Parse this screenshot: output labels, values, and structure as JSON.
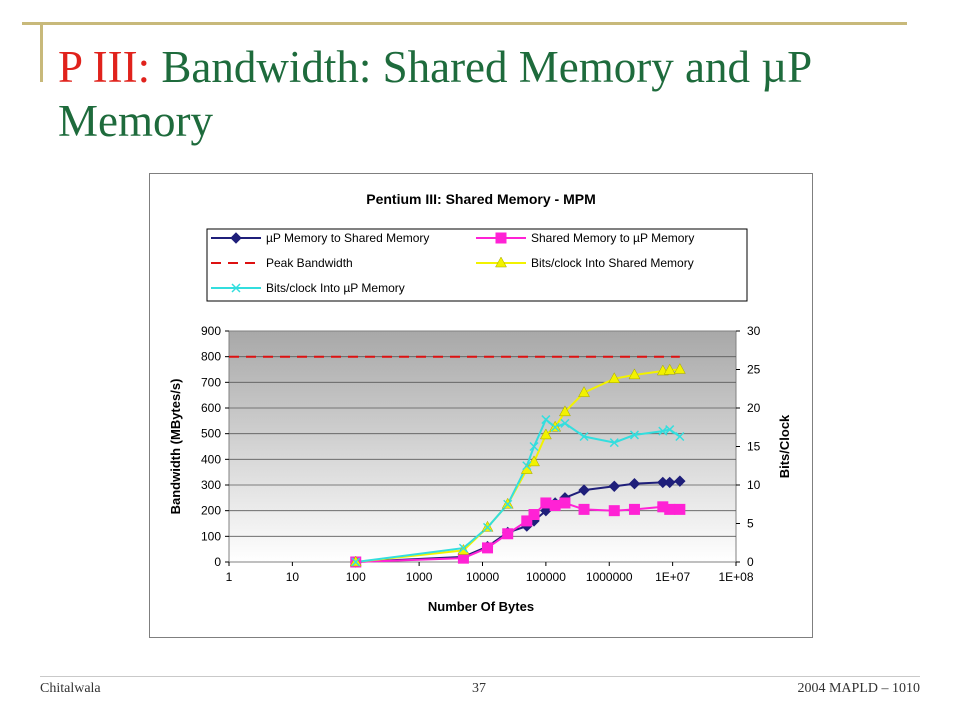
{
  "slide": {
    "title_prefix": "P III:",
    "title_rest": " Bandwidth: Shared Memory and µP Memory"
  },
  "footer": {
    "author": "Chitalwala",
    "page_number": "37",
    "event": "2004 MAPLD – 1010"
  },
  "chart_data": {
    "type": "line",
    "title": "Pentium III: Shared Memory - MPM",
    "xlabel": "Number Of Bytes",
    "ylabel": "Bandwidth (MBytes/s)",
    "y2label": "Bits/Clock",
    "x_scale": "log",
    "xlim": [
      1,
      100000000
    ],
    "ylim": [
      0,
      900
    ],
    "y2lim": [
      0,
      30
    ],
    "x_tick_labels": [
      "1",
      "10",
      "100",
      "1000",
      "10000",
      "100000",
      "1000000",
      "1E+07",
      "1E+08"
    ],
    "y_ticks": [
      "0",
      "100",
      "200",
      "300",
      "400",
      "500",
      "600",
      "700",
      "800",
      "900"
    ],
    "y2_ticks": [
      "0",
      "5",
      "10",
      "15",
      "20",
      "25",
      "30"
    ],
    "grid": "horizontal",
    "legend_position": "top",
    "series": [
      {
        "name": "µP Memory to Shared Memory",
        "axis": "left",
        "color": "#1f1f7a",
        "marker": "diamond",
        "dash": "none",
        "points": [
          [
            100,
            0
          ],
          [
            5000,
            20
          ],
          [
            12000,
            60
          ],
          [
            25000,
            115
          ],
          [
            50000,
            140
          ],
          [
            65000,
            160
          ],
          [
            100000,
            200
          ],
          [
            140000,
            230
          ],
          [
            200000,
            250
          ],
          [
            400000,
            280
          ],
          [
            1200000,
            295
          ],
          [
            2500000,
            305
          ],
          [
            7000000,
            310
          ],
          [
            9000000,
            310
          ],
          [
            13000000,
            315
          ]
        ]
      },
      {
        "name": "Shared Memory to µP Memory",
        "axis": "left",
        "color": "#ff22d5",
        "marker": "square",
        "dash": "none",
        "points": [
          [
            100,
            0
          ],
          [
            5000,
            15
          ],
          [
            12000,
            55
          ],
          [
            25000,
            110
          ],
          [
            50000,
            160
          ],
          [
            65000,
            185
          ],
          [
            100000,
            230
          ],
          [
            140000,
            220
          ],
          [
            200000,
            230
          ],
          [
            400000,
            205
          ],
          [
            1200000,
            200
          ],
          [
            2500000,
            205
          ],
          [
            7000000,
            215
          ],
          [
            9000000,
            205
          ],
          [
            13000000,
            205
          ]
        ]
      },
      {
        "name": "Peak Bandwidth",
        "axis": "left",
        "color": "#dd1111",
        "marker": "none",
        "dash": "dash",
        "points": [
          [
            1,
            800
          ],
          [
            13000000,
            800
          ]
        ]
      },
      {
        "name": "Bits/clock Into Shared Memory",
        "axis": "right",
        "color": "#f2f200",
        "marker": "triangle",
        "dash": "none",
        "points": [
          [
            100,
            0
          ],
          [
            5000,
            1.5
          ],
          [
            12000,
            4.5
          ],
          [
            25000,
            7.5
          ],
          [
            50000,
            12
          ],
          [
            65000,
            13
          ],
          [
            100000,
            16.5
          ],
          [
            140000,
            17.5
          ],
          [
            200000,
            19.5
          ],
          [
            400000,
            22
          ],
          [
            1200000,
            23.8
          ],
          [
            2500000,
            24.3
          ],
          [
            7000000,
            24.8
          ],
          [
            9000000,
            24.9
          ],
          [
            13000000,
            25
          ]
        ]
      },
      {
        "name": "Bits/clock Into µP Memory",
        "axis": "right",
        "color": "#33dede",
        "marker": "x",
        "dash": "none",
        "points": [
          [
            100,
            0
          ],
          [
            5000,
            1.8
          ],
          [
            12000,
            4.5
          ],
          [
            25000,
            7.5
          ],
          [
            50000,
            12.5
          ],
          [
            65000,
            15
          ],
          [
            100000,
            18.5
          ],
          [
            140000,
            17.5
          ],
          [
            200000,
            18
          ],
          [
            400000,
            16.3
          ],
          [
            1200000,
            15.5
          ],
          [
            2500000,
            16.5
          ],
          [
            7000000,
            17
          ],
          [
            9000000,
            17.2
          ],
          [
            13000000,
            16.3
          ]
        ]
      }
    ]
  }
}
